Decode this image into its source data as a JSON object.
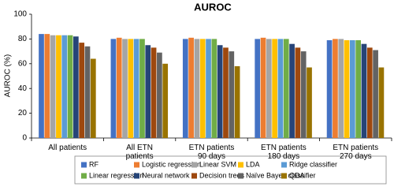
{
  "chart_data": {
    "type": "bar",
    "title": "AUROC",
    "y_label": "AUROC (%)",
    "categories": [
      "All patients",
      "All ETN patients",
      "ETN patients 90 days",
      "ETN patients 180 days",
      "ETN patients 270 days"
    ],
    "series": [
      {
        "name": "RF",
        "color": "#4472c4",
        "values": [
          84,
          80,
          80,
          80,
          79
        ]
      },
      {
        "name": "Logistic regression",
        "color": "#ed7d31",
        "values": [
          84,
          81,
          81,
          81,
          80
        ]
      },
      {
        "name": "Linear SVM",
        "color": "#a5a5a5",
        "values": [
          83,
          80,
          80,
          80,
          80
        ]
      },
      {
        "name": "LDA",
        "color": "#ffc000",
        "values": [
          83,
          80,
          80,
          80,
          79
        ]
      },
      {
        "name": "Ridge classifier",
        "color": "#5b9bd5",
        "values": [
          83,
          80,
          80,
          80,
          79
        ]
      },
      {
        "name": "Linear regression",
        "color": "#70ad47",
        "values": [
          83,
          80,
          80,
          80,
          79
        ]
      },
      {
        "name": "Neural network",
        "color": "#264478",
        "values": [
          82,
          75,
          75,
          76,
          76
        ]
      },
      {
        "name": "Decision trees",
        "color": "#9e480e",
        "values": [
          77,
          73,
          73,
          73,
          73
        ]
      },
      {
        "name": "Naïve Bayes classifier",
        "color": "#636363",
        "values": [
          74,
          69,
          70,
          70,
          71
        ]
      },
      {
        "name": "QDA",
        "color": "#997300",
        "values": [
          64,
          60,
          58,
          57,
          57
        ]
      }
    ],
    "ylim": [
      0,
      100
    ],
    "yticks": [
      0,
      20,
      40,
      60,
      80,
      100
    ],
    "grid": false,
    "legend": "bottom"
  }
}
